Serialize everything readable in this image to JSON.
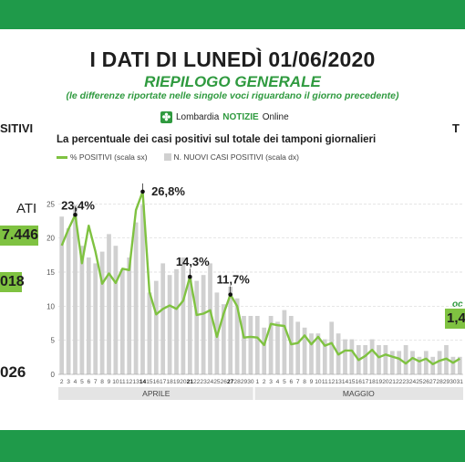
{
  "header": {
    "title": "I DATI DI LUNEDÌ 01/06/2020",
    "subtitle": "RIEPILOGO GENERALE",
    "note": "(le differenze riportate nelle singole voci riguardano il giorno precedente)"
  },
  "logo": {
    "brand": "Lombardia",
    "strong": "NOTIZIE",
    "suffix": "Online"
  },
  "left_panel": {
    "label_top": "SITIVI",
    "label_mid": "ATI",
    "value_1": "7.446",
    "value_2": "018",
    "value_3": "026"
  },
  "right_panel": {
    "label_top": "T",
    "label_small": "oc",
    "value": "1,4"
  },
  "colors": {
    "band": "#1f9a4a",
    "line": "#7fc241",
    "bars": "#d0d0d0",
    "accent": "#2f9a3f"
  },
  "chart_data": {
    "type": "bar+line",
    "title": "La percentuale dei casi positivi sul totale dei tamponi giornalieri",
    "legend": [
      "% POSITIVI (scala sx)",
      "N. NUOVI CASI POSITIVI (scala dx)"
    ],
    "ylim_left": [
      0,
      30
    ],
    "y_ticks_left": [
      0,
      5,
      10,
      15,
      20,
      25
    ],
    "x_labels": [
      "2",
      "3",
      "4",
      "5",
      "6",
      "7",
      "8",
      "9",
      "10",
      "11",
      "12",
      "13",
      "14",
      "15",
      "16",
      "17",
      "18",
      "19",
      "20",
      "21",
      "22",
      "23",
      "24",
      "25",
      "26",
      "27",
      "28",
      "29",
      "30",
      "1",
      "2",
      "3",
      "4",
      "5",
      "6",
      "7",
      "8",
      "9",
      "10",
      "11",
      "12",
      "13",
      "14",
      "15",
      "16",
      "17",
      "18",
      "19",
      "20",
      "21",
      "22",
      "23",
      "24",
      "25",
      "26",
      "27",
      "28",
      "29",
      "30",
      "31"
    ],
    "bold_x_labels": [
      "14",
      "21",
      "27"
    ],
    "months": [
      "APRILE",
      "MAGGIO"
    ],
    "series": [
      {
        "name": "% POSITIVI (scala sx)",
        "values": [
          18.9,
          21.3,
          23.4,
          16.3,
          21.8,
          18.0,
          13.3,
          14.8,
          13.4,
          15.5,
          15.3,
          24.1,
          26.8,
          12.1,
          8.8,
          9.6,
          10.1,
          9.6,
          10.8,
          14.3,
          8.7,
          8.9,
          9.4,
          5.5,
          8.9,
          11.7,
          10.0,
          5.4,
          5.5,
          5.4,
          4.3,
          7.4,
          7.2,
          7.1,
          4.4,
          4.6,
          5.7,
          4.4,
          5.5,
          4.2,
          4.6,
          2.9,
          3.5,
          3.5,
          2.1,
          2.7,
          3.6,
          2.5,
          2.9,
          2.6,
          2.3,
          1.6,
          2.4,
          1.9,
          2.3,
          1.5,
          2.0,
          2.3,
          1.7,
          2.3
        ]
      },
      {
        "name": "N. NUOVI CASI POSITIVI (scala dx)",
        "values": [
          27,
          25,
          29,
          22,
          20,
          19,
          21,
          24,
          22,
          18,
          20,
          26,
          29,
          14,
          16,
          19,
          17,
          18,
          20,
          17,
          16,
          17,
          19,
          14,
          12,
          15,
          13,
          10,
          10,
          10,
          8,
          10,
          9,
          11,
          10,
          9,
          8,
          7,
          7,
          6,
          9,
          7,
          6,
          6,
          5,
          5,
          6,
          5,
          5,
          4,
          4,
          5,
          4,
          3,
          4,
          3,
          4,
          5,
          3,
          3
        ]
      }
    ],
    "annotations": [
      {
        "x": "4",
        "label": "23,4%",
        "value": 23.4
      },
      {
        "x": "14",
        "label": "26,8%",
        "value": 26.8
      },
      {
        "x": "21",
        "label": "14,3%",
        "value": 14.3
      },
      {
        "x": "27",
        "label": "11,7%",
        "value": 11.7
      }
    ]
  }
}
